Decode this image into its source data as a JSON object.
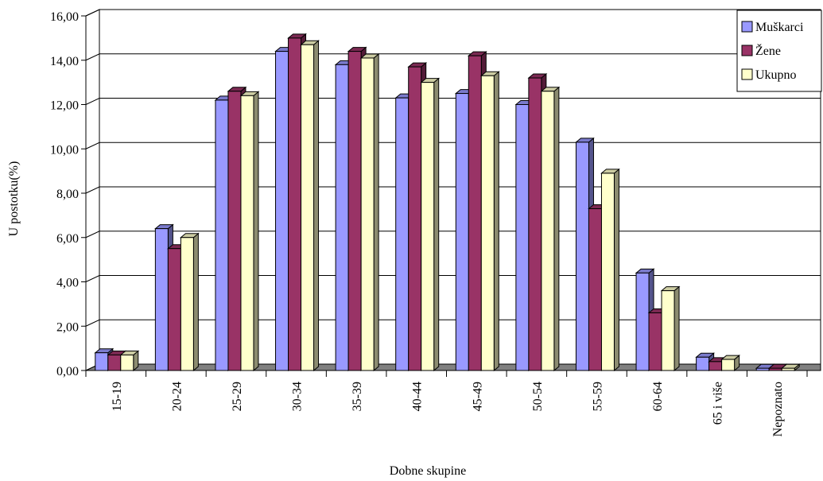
{
  "chart_data": {
    "type": "bar",
    "title": "",
    "xlabel": "Dobne skupine",
    "ylabel": "U postotku(%)",
    "ylim": [
      0,
      16
    ],
    "ytick_step": 2,
    "ytick_labels": [
      "0,00",
      "2,00",
      "4,00",
      "6,00",
      "8,00",
      "10,00",
      "12,00",
      "14,00",
      "16,00"
    ],
    "grid": true,
    "legend_position": "top-right",
    "categories": [
      "15-19",
      "20-24",
      "25-29",
      "30-34",
      "35-39",
      "40-44",
      "45-49",
      "50-54",
      "55-59",
      "60-64",
      "65 i više",
      "Nepoznato"
    ],
    "series": [
      {
        "name": "Muškarci",
        "color": "#9999ff",
        "values": [
          0.8,
          6.4,
          12.2,
          14.4,
          13.8,
          12.3,
          12.5,
          12.0,
          10.3,
          4.4,
          0.6,
          0.1
        ]
      },
      {
        "name": "Žene",
        "color": "#993366",
        "values": [
          0.7,
          5.5,
          12.6,
          15.0,
          14.4,
          13.7,
          14.2,
          13.2,
          7.3,
          2.6,
          0.4,
          0.1
        ]
      },
      {
        "name": "Ukupno",
        "color": "#ffffcc",
        "values": [
          0.7,
          6.0,
          12.4,
          14.7,
          14.1,
          13.0,
          13.3,
          12.6,
          8.9,
          3.6,
          0.5,
          0.1
        ]
      }
    ]
  }
}
